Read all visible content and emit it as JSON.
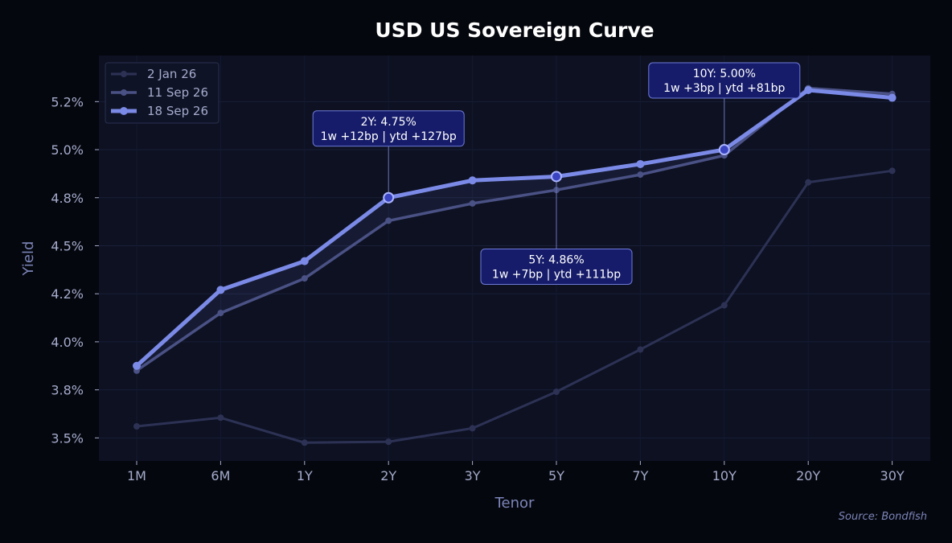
{
  "chart_data": {
    "type": "line",
    "title": "USD US Sovereign Curve",
    "xlabel": "Tenor",
    "ylabel": "Yield",
    "source": "Source: Bondfish",
    "categories": [
      "1M",
      "6M",
      "1Y",
      "2Y",
      "3Y",
      "5Y",
      "7Y",
      "10Y",
      "20Y",
      "30Y"
    ],
    "y_ticks": [
      {
        "value": 3.5,
        "label": "3.5%"
      },
      {
        "value": 3.75,
        "label": "3.8%"
      },
      {
        "value": 4.0,
        "label": "4.0%"
      },
      {
        "value": 4.25,
        "label": "4.2%"
      },
      {
        "value": 4.5,
        "label": "4.5%"
      },
      {
        "value": 4.75,
        "label": "4.8%"
      },
      {
        "value": 5.0,
        "label": "5.0%"
      },
      {
        "value": 5.25,
        "label": "5.2%"
      }
    ],
    "ylim": [
      3.38,
      5.49
    ],
    "grid": true,
    "legend_position": "top-left",
    "series": [
      {
        "name": "2 Jan 26",
        "color": "#2d3255",
        "values": [
          3.56,
          3.605,
          3.475,
          3.48,
          3.55,
          3.74,
          3.96,
          4.19,
          4.83,
          4.89
        ]
      },
      {
        "name": "11 Sep 26",
        "color": "#4a5184",
        "values": [
          3.85,
          4.15,
          4.33,
          4.63,
          4.72,
          4.79,
          4.87,
          4.97,
          5.32,
          5.29
        ]
      },
      {
        "name": "18 Sep 26",
        "color": "#7b8ae6",
        "values": [
          3.875,
          4.27,
          4.42,
          4.75,
          4.84,
          4.86,
          4.925,
          5.0,
          5.31,
          5.27
        ]
      }
    ],
    "annotations": [
      {
        "category": "2Y",
        "value": 4.75,
        "lines": [
          "2Y: 4.75%",
          "1w +12bp | ytd +127bp"
        ],
        "placement": "above"
      },
      {
        "category": "5Y",
        "value": 4.86,
        "lines": [
          "5Y: 4.86%",
          "1w +7bp | ytd +111bp"
        ],
        "placement": "below"
      },
      {
        "category": "10Y",
        "value": 5.0,
        "lines": [
          "10Y: 5.00%",
          "1w +3bp | ytd +81bp"
        ],
        "placement": "above"
      }
    ]
  }
}
